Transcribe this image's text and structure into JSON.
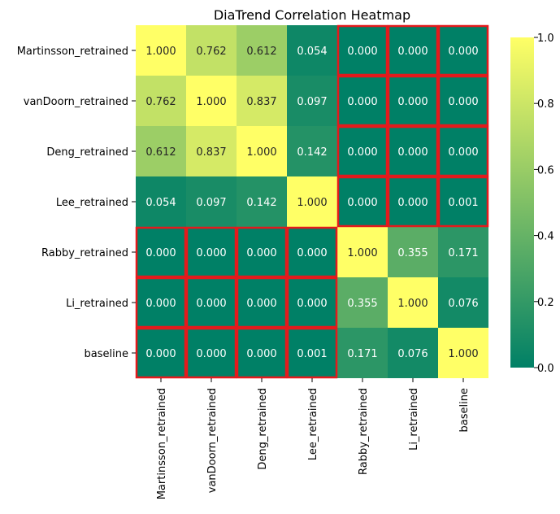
{
  "chart_data": {
    "type": "heatmap",
    "title": "DiaTrend Correlation Heatmap",
    "xlabel": "",
    "ylabel": "",
    "row_labels": [
      "Martinsson_retrained",
      "vanDoorn_retrained",
      "Deng_retrained",
      "Lee_retrained",
      "Rabby_retrained",
      "Li_retrained",
      "baseline"
    ],
    "col_labels": [
      "Martinsson_retrained",
      "vanDoorn_retrained",
      "Deng_retrained",
      "Lee_retrained",
      "Rabby_retrained",
      "Li_retrained",
      "baseline"
    ],
    "values": [
      [
        1.0,
        0.762,
        0.612,
        0.054,
        0.0,
        0.0,
        0.0
      ],
      [
        0.762,
        1.0,
        0.837,
        0.097,
        0.0,
        0.0,
        0.0
      ],
      [
        0.612,
        0.837,
        1.0,
        0.142,
        0.0,
        0.0,
        0.0
      ],
      [
        0.054,
        0.097,
        0.142,
        1.0,
        0.0,
        0.0,
        0.001
      ],
      [
        0.0,
        0.0,
        0.0,
        0.0,
        1.0,
        0.355,
        0.171
      ],
      [
        0.0,
        0.0,
        0.0,
        0.0,
        0.355,
        1.0,
        0.076
      ],
      [
        0.0,
        0.0,
        0.0,
        0.001,
        0.171,
        0.076,
        1.0
      ]
    ],
    "value_format": "3 decimals",
    "color_range": [
      0.0,
      1.0
    ],
    "colormap": "summer (green to yellow)",
    "color_low": "#008066",
    "color_high": "#ffff66",
    "colorbar_ticks": [
      0.0,
      0.2,
      0.4,
      0.6,
      0.8,
      1.0
    ],
    "colorbar_tick_labels": [
      "0.0",
      "0.2",
      "0.4",
      "0.6",
      "0.8",
      "1.0"
    ],
    "highlight_color": "#e31a1c",
    "highlighted_cells_rule": "cells with value below 0.01 outlined in red"
  }
}
